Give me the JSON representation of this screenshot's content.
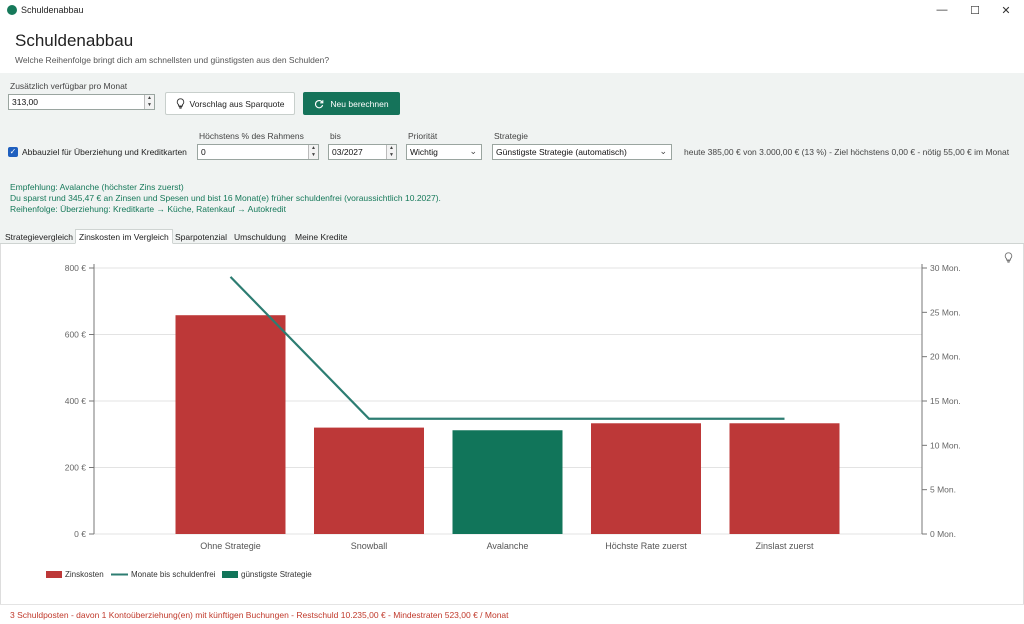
{
  "window": {
    "title": "Schuldenabbau",
    "minimize": "—",
    "maximize": "☐",
    "close": "✕"
  },
  "header": {
    "title": "Schuldenabbau",
    "subtitle": "Welche Reihenfolge bringt dich am schnellsten und günstigsten aus den Schulden?"
  },
  "controls": {
    "monthly_label": "Zusätzlich verfügbar pro Monat",
    "monthly_value": "313,00",
    "suggest_button": "Vorschlag aus Sparquote",
    "recalc_button": "Neu berechnen",
    "checkbox_label": "Abbauziel für Überziehung und Kreditkarten",
    "max_percent_label": "Höchstens % des Rahmens",
    "max_percent_value": "0",
    "until_label": "bis",
    "until_value": "03/2027",
    "priority_label": "Priorität",
    "priority_value": "Wichtig",
    "strategy_label": "Strategie",
    "strategy_value": "Günstigste Strategie (automatisch)",
    "status_text": "heute 385,00 € von 3.000,00 € (13 %) - Ziel höchstens 0,00 € - nötig 55,00 € im Monat"
  },
  "recommendation": {
    "line1": "Empfehlung: Avalanche (höchster Zins zuerst)",
    "line2": "Du sparst rund 345,47 € an Zinsen und Spesen und bist 16 Monat(e) früher schuldenfrei (voraussichtlich 10.2027).",
    "line3": "Reihenfolge: Überziehung: Kreditkarte → Küche, Ratenkauf → Autokredit"
  },
  "tabs": [
    {
      "label": "Strategievergleich"
    },
    {
      "label": "Zinskosten im Vergleich"
    },
    {
      "label": "Sparpotenzial"
    },
    {
      "label": "Umschuldung"
    },
    {
      "label": "Meine Kredite"
    }
  ],
  "colors": {
    "accent": "#15735a",
    "bar_default": "#bd3838",
    "bar_best": "#11755a",
    "line": "#2d7d72",
    "footer_text": "#c0392b"
  },
  "chart_data": {
    "type": "bar",
    "categories": [
      "Ohne Strategie",
      "Snowball",
      "Avalanche",
      "Höchste Rate zuerst",
      "Zinslast zuerst"
    ],
    "series": [
      {
        "name": "Zinskosten",
        "type": "bar",
        "axis": "left",
        "values": [
          658,
          320,
          312,
          333,
          333
        ]
      },
      {
        "name": "Monate bis schuldenfrei",
        "type": "line",
        "axis": "right",
        "values": [
          29,
          13,
          13,
          13,
          13
        ]
      }
    ],
    "highlight_index": 2,
    "left_axis": {
      "min": 0,
      "max": 800,
      "ticks": [
        0,
        200,
        400,
        600,
        800
      ],
      "tick_labels": [
        "0 €",
        "200 €",
        "400 €",
        "600 €",
        "800 €"
      ]
    },
    "right_axis": {
      "min": 0,
      "max": 30,
      "ticks": [
        0,
        5,
        10,
        15,
        20,
        25,
        30
      ],
      "tick_labels": [
        "0 Mon.",
        "5 Mon.",
        "10 Mon.",
        "15 Mon.",
        "20 Mon.",
        "25 Mon.",
        "30 Mon."
      ]
    },
    "legend": [
      "Zinskosten",
      "Monate bis schuldenfrei",
      "günstigste Strategie"
    ],
    "legend_position": "bottom-left",
    "grid": true
  },
  "footer": {
    "text": "3 Schuldposten - davon 1 Kontoüberziehung(en) mit künftigen Buchungen - Restschuld 10.235,00 € - Mindestraten 523,00 € / Monat"
  }
}
